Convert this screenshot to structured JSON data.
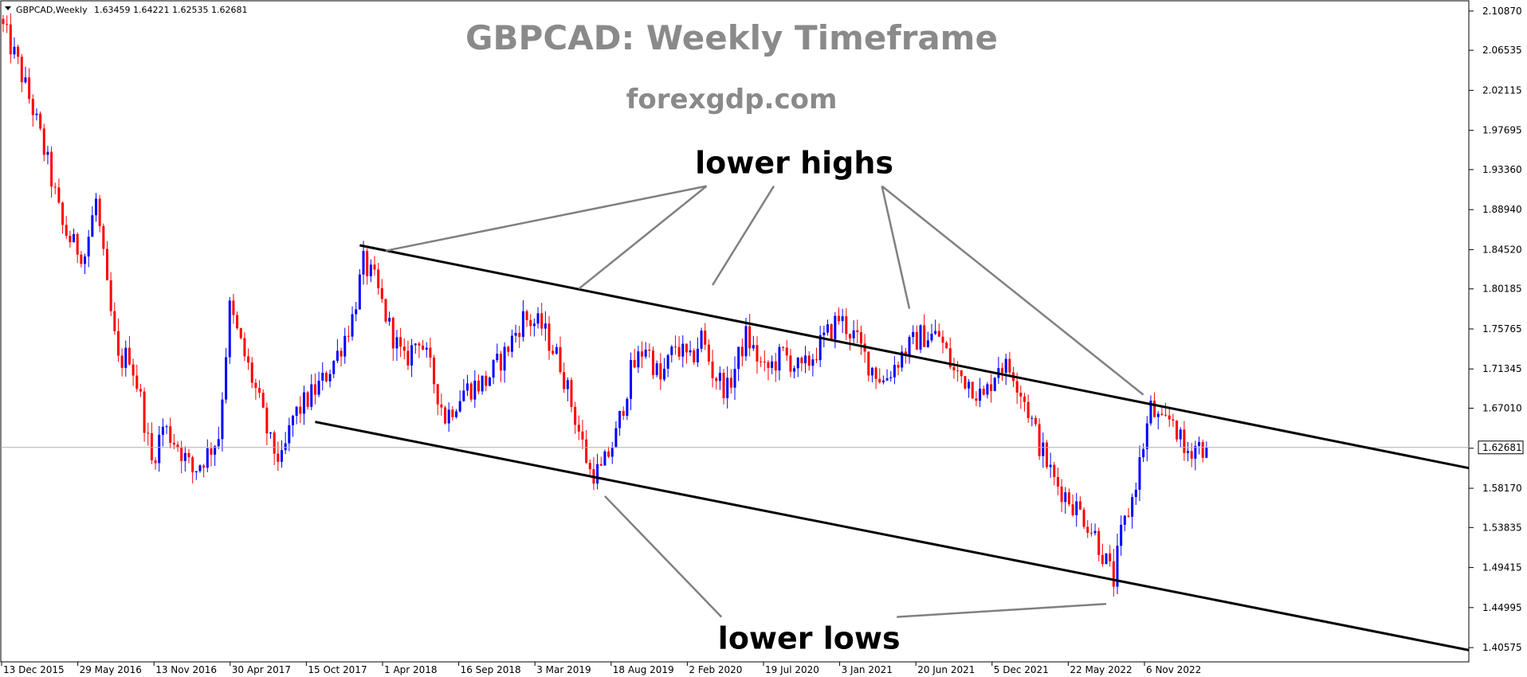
{
  "header": {
    "symbol_info": "GBPCAD,Weekly",
    "ohlc": "1.63459 1.64221 1.62535 1.62681"
  },
  "chart_data": {
    "type": "candlestick",
    "title": "GBPCAD: Weekly Timeframe",
    "subtitle": "forexgdp.com",
    "current_price": "1.62681",
    "ylim": [
      1.39,
      2.12
    ],
    "y_ticks": [
      "2.10870",
      "2.06535",
      "2.02115",
      "1.97695",
      "1.93360",
      "1.88940",
      "1.84520",
      "1.80185",
      "1.75765",
      "1.71345",
      "1.67010",
      "1.62590",
      "1.58170",
      "1.53835",
      "1.49415",
      "1.44995",
      "1.40575"
    ],
    "x_ticks": [
      "13 Dec 2015",
      "29 May 2016",
      "13 Nov 2016",
      "30 Apr 2017",
      "15 Oct 2017",
      "1 Apr 2018",
      "16 Sep 2018",
      "3 Mar 2019",
      "18 Aug 2019",
      "2 Feb 2020",
      "19 Jul 2020",
      "3 Jan 2021",
      "20 Jun 2021",
      "5 Dec 2021",
      "22 May 2022",
      "6 Nov 2022"
    ],
    "x_range_weeks": [
      0,
      400
    ],
    "up_color": "#0000ff",
    "down_color": "#ff0000",
    "price_path": [
      {
        "w": 0,
        "p": 2.09
      },
      {
        "w": 4,
        "p": 2.05
      },
      {
        "w": 8,
        "p": 2.0
      },
      {
        "w": 12,
        "p": 1.94
      },
      {
        "w": 16,
        "p": 1.87
      },
      {
        "w": 19,
        "p": 1.85
      },
      {
        "w": 22,
        "p": 1.84
      },
      {
        "w": 25,
        "p": 1.9
      },
      {
        "w": 28,
        "p": 1.8
      },
      {
        "w": 31,
        "p": 1.72
      },
      {
        "w": 34,
        "p": 1.73
      },
      {
        "w": 37,
        "p": 1.68
      },
      {
        "w": 40,
        "p": 1.61
      },
      {
        "w": 43,
        "p": 1.65
      },
      {
        "w": 47,
        "p": 1.63
      },
      {
        "w": 51,
        "p": 1.6
      },
      {
        "w": 55,
        "p": 1.62
      },
      {
        "w": 58,
        "p": 1.64
      },
      {
        "w": 61,
        "p": 1.78
      },
      {
        "w": 64,
        "p": 1.74
      },
      {
        "w": 68,
        "p": 1.69
      },
      {
        "w": 72,
        "p": 1.63
      },
      {
        "w": 75,
        "p": 1.61
      },
      {
        "w": 78,
        "p": 1.66
      },
      {
        "w": 82,
        "p": 1.68
      },
      {
        "w": 86,
        "p": 1.7
      },
      {
        "w": 90,
        "p": 1.73
      },
      {
        "w": 94,
        "p": 1.77
      },
      {
        "w": 97,
        "p": 1.83
      },
      {
        "w": 100,
        "p": 1.81
      },
      {
        "w": 104,
        "p": 1.76
      },
      {
        "w": 108,
        "p": 1.72
      },
      {
        "w": 112,
        "p": 1.75
      },
      {
        "w": 116,
        "p": 1.7
      },
      {
        "w": 119,
        "p": 1.66
      },
      {
        "w": 124,
        "p": 1.69
      },
      {
        "w": 130,
        "p": 1.7
      },
      {
        "w": 135,
        "p": 1.73
      },
      {
        "w": 140,
        "p": 1.77
      },
      {
        "w": 145,
        "p": 1.76
      },
      {
        "w": 150,
        "p": 1.72
      },
      {
        "w": 154,
        "p": 1.66
      },
      {
        "w": 158,
        "p": 1.6
      },
      {
        "w": 161,
        "p": 1.6
      },
      {
        "w": 165,
        "p": 1.64
      },
      {
        "w": 169,
        "p": 1.71
      },
      {
        "w": 173,
        "p": 1.74
      },
      {
        "w": 177,
        "p": 1.7
      },
      {
        "w": 181,
        "p": 1.74
      },
      {
        "w": 185,
        "p": 1.72
      },
      {
        "w": 188,
        "p": 1.75
      },
      {
        "w": 191,
        "p": 1.71
      },
      {
        "w": 195,
        "p": 1.69
      },
      {
        "w": 200,
        "p": 1.75
      },
      {
        "w": 205,
        "p": 1.71
      },
      {
        "w": 210,
        "p": 1.73
      },
      {
        "w": 215,
        "p": 1.71
      },
      {
        "w": 220,
        "p": 1.74
      },
      {
        "w": 225,
        "p": 1.77
      },
      {
        "w": 229,
        "p": 1.75
      },
      {
        "w": 233,
        "p": 1.72
      },
      {
        "w": 237,
        "p": 1.7
      },
      {
        "w": 242,
        "p": 1.73
      },
      {
        "w": 247,
        "p": 1.75
      },
      {
        "w": 252,
        "p": 1.75
      },
      {
        "w": 256,
        "p": 1.71
      },
      {
        "w": 260,
        "p": 1.7
      },
      {
        "w": 264,
        "p": 1.68
      },
      {
        "w": 268,
        "p": 1.72
      },
      {
        "w": 272,
        "p": 1.71
      },
      {
        "w": 275,
        "p": 1.68
      },
      {
        "w": 279,
        "p": 1.63
      },
      {
        "w": 283,
        "p": 1.59
      },
      {
        "w": 287,
        "p": 1.57
      },
      {
        "w": 291,
        "p": 1.55
      },
      {
        "w": 294,
        "p": 1.53
      },
      {
        "w": 297,
        "p": 1.5
      },
      {
        "w": 299,
        "p": 1.48
      },
      {
        "w": 301,
        "p": 1.53
      },
      {
        "w": 304,
        "p": 1.57
      },
      {
        "w": 307,
        "p": 1.63
      },
      {
        "w": 309,
        "p": 1.67
      },
      {
        "w": 312,
        "p": 1.65
      },
      {
        "w": 315,
        "p": 1.66
      },
      {
        "w": 318,
        "p": 1.62
      },
      {
        "w": 321,
        "p": 1.63
      },
      {
        "w": 324,
        "p": 1.6268
      }
    ],
    "upper_channel": {
      "start": {
        "w": 96,
        "p": 1.85
      },
      "end": {
        "w": 400,
        "p": 1.604
      }
    },
    "lower_channel": {
      "start": {
        "w": 84,
        "p": 1.655
      },
      "end": {
        "w": 400,
        "p": 1.403
      }
    },
    "annotations": [
      {
        "text": "lower highs",
        "anchor_w": 213,
        "anchor_p": 1.94,
        "targets": [
          {
            "w": 103,
            "p": 1.844
          },
          {
            "w": 155,
            "p": 1.802
          },
          {
            "w": 191,
            "p": 1.806
          },
          {
            "w": 244,
            "p": 1.78
          },
          {
            "w": 307,
            "p": 1.685
          }
        ]
      },
      {
        "text": "lower lows",
        "anchor_w": 217,
        "anchor_p": 1.415,
        "targets": [
          {
            "w": 162,
            "p": 1.573
          },
          {
            "w": 297,
            "p": 1.454
          }
        ]
      }
    ]
  }
}
